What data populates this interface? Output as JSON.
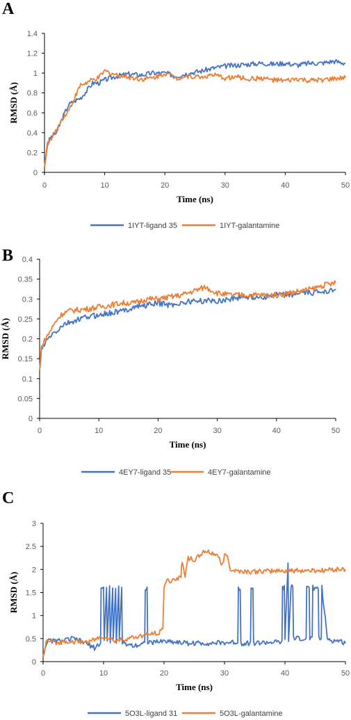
{
  "chart_data": [
    {
      "type": "line",
      "panel_label": "A",
      "xlabel": "Time (ns)",
      "ylabel": "RMSD (Å)",
      "xlim": [
        0,
        50
      ],
      "ylim": [
        0,
        1.4
      ],
      "xticks": [
        "0",
        "10",
        "20",
        "30",
        "40",
        "50"
      ],
      "yticks": [
        "0",
        "0.2",
        "0.4",
        "0.6",
        "0.8",
        "1",
        "1.2",
        "1.4"
      ],
      "ytick_values": [
        0,
        0.2,
        0.4,
        0.6,
        0.8,
        1,
        1.2,
        1.4
      ],
      "xtick_values": [
        0,
        10,
        20,
        30,
        40,
        50
      ],
      "legend_position": "bottom",
      "series": [
        {
          "name": "1IYT-ligand 35",
          "color": "#4472C4",
          "x": [
            0,
            0.5,
            1,
            2,
            3,
            4,
            5,
            6,
            7,
            8,
            9,
            10,
            12,
            14,
            16,
            18,
            20,
            22,
            24,
            26,
            28,
            30,
            32,
            34,
            36,
            38,
            40,
            42,
            44,
            46,
            48,
            50
          ],
          "y": [
            0.05,
            0.28,
            0.35,
            0.4,
            0.55,
            0.68,
            0.72,
            0.75,
            0.82,
            0.9,
            0.9,
            0.93,
            0.97,
            0.99,
            0.98,
            1.0,
            1.0,
            0.97,
            1.0,
            1.02,
            1.05,
            1.07,
            1.08,
            1.09,
            1.1,
            1.09,
            1.1,
            1.08,
            1.1,
            1.1,
            1.12,
            1.1
          ]
        },
        {
          "name": "1IYT-galantamine",
          "color": "#ED7D31",
          "x": [
            0,
            0.5,
            1,
            2,
            3,
            4,
            5,
            6,
            7,
            8,
            9,
            10,
            12,
            14,
            16,
            18,
            20,
            22,
            24,
            26,
            28,
            30,
            32,
            34,
            36,
            38,
            40,
            42,
            44,
            46,
            48,
            50
          ],
          "y": [
            0.05,
            0.3,
            0.32,
            0.42,
            0.55,
            0.62,
            0.75,
            0.88,
            0.9,
            0.93,
            0.95,
            1.02,
            0.98,
            0.96,
            0.94,
            0.95,
            1.0,
            0.95,
            0.97,
            0.96,
            0.98,
            0.95,
            0.96,
            0.94,
            0.95,
            0.93,
            0.92,
            0.94,
            0.92,
            0.93,
            0.94,
            0.95
          ]
        }
      ]
    },
    {
      "type": "line",
      "panel_label": "B",
      "xlabel": "Time (ns)",
      "ylabel": "RMSD (Å)",
      "xlim": [
        0,
        50
      ],
      "ylim": [
        0,
        0.4
      ],
      "xticks": [
        "0",
        "10",
        "20",
        "30",
        "40",
        "50"
      ],
      "yticks": [
        "0",
        "0.05",
        "0.1",
        "0.15",
        "0.2",
        "0.25",
        "0.3",
        "0.35",
        "0.4"
      ],
      "ytick_values": [
        0,
        0.05,
        0.1,
        0.15,
        0.2,
        0.25,
        0.3,
        0.35,
        0.4
      ],
      "xtick_values": [
        0,
        10,
        20,
        30,
        40,
        50
      ],
      "legend_position": "bottom",
      "series": [
        {
          "name": "4EY7-ligand 35",
          "color": "#4472C4",
          "x": [
            0,
            0.3,
            1,
            2,
            3,
            4,
            5,
            6,
            8,
            10,
            12,
            14,
            16,
            18,
            20,
            22,
            24,
            26,
            28,
            30,
            32,
            34,
            36,
            38,
            40,
            42,
            44,
            46,
            48,
            50
          ],
          "y": [
            0.12,
            0.17,
            0.19,
            0.21,
            0.22,
            0.235,
            0.24,
            0.245,
            0.255,
            0.26,
            0.265,
            0.27,
            0.28,
            0.285,
            0.29,
            0.285,
            0.29,
            0.295,
            0.295,
            0.295,
            0.3,
            0.305,
            0.305,
            0.305,
            0.31,
            0.31,
            0.315,
            0.315,
            0.32,
            0.325
          ]
        },
        {
          "name": "4EY7-galantamine",
          "color": "#ED7D31",
          "x": [
            0,
            0.3,
            1,
            2,
            3,
            4,
            5,
            6,
            8,
            10,
            12,
            14,
            16,
            18,
            20,
            22,
            24,
            26,
            28,
            30,
            32,
            34,
            36,
            38,
            40,
            42,
            44,
            46,
            48,
            50
          ],
          "y": [
            0.12,
            0.18,
            0.2,
            0.225,
            0.25,
            0.265,
            0.27,
            0.272,
            0.275,
            0.28,
            0.285,
            0.29,
            0.29,
            0.3,
            0.3,
            0.305,
            0.31,
            0.32,
            0.33,
            0.315,
            0.31,
            0.31,
            0.31,
            0.31,
            0.31,
            0.315,
            0.32,
            0.325,
            0.335,
            0.34
          ]
        }
      ]
    },
    {
      "type": "line",
      "panel_label": "C",
      "xlabel": "Time (ns)",
      "ylabel": "RMSD (Å)",
      "xlim": [
        0,
        50
      ],
      "ylim": [
        0,
        3
      ],
      "xticks": [
        "0",
        "10",
        "20",
        "30",
        "40",
        "50"
      ],
      "yticks": [
        "0",
        "0.5",
        "1",
        "1.5",
        "2",
        "2.5",
        "3"
      ],
      "ytick_values": [
        0,
        0.5,
        1,
        1.5,
        2,
        2.5,
        3
      ],
      "xtick_values": [
        0,
        10,
        20,
        30,
        40,
        50
      ],
      "legend_position": "bottom",
      "series": [
        {
          "name": "5O3L-ligand 31",
          "color": "#4472C4",
          "x": [
            0,
            0.5,
            1,
            3,
            5,
            7,
            8.5,
            9.5,
            9.6,
            10,
            10.1,
            10.5,
            10.6,
            11,
            11.1,
            11.5,
            11.6,
            12,
            12.1,
            12.5,
            12.6,
            13,
            13.1,
            15,
            16.8,
            16.9,
            17.2,
            17.3,
            20,
            24,
            28,
            32.2,
            32.3,
            32.6,
            32.7,
            34.3,
            34.4,
            34.7,
            34.8,
            38,
            39.5,
            39.6,
            39.9,
            40,
            40.5,
            40.6,
            41,
            41.1,
            41.3,
            41.4,
            41.8,
            42,
            43,
            43.5,
            43.6,
            44,
            44.1,
            44.5,
            44.6,
            45.5,
            45.6,
            46,
            46.1,
            47,
            48,
            49,
            50
          ],
          "y": [
            0.1,
            0.4,
            0.45,
            0.45,
            0.5,
            0.4,
            0.3,
            0.4,
            1.6,
            1.6,
            0.45,
            1.6,
            0.45,
            1.6,
            0.45,
            1.6,
            0.45,
            1.6,
            0.45,
            1.6,
            0.45,
            1.6,
            0.4,
            0.35,
            0.4,
            1.6,
            1.6,
            0.4,
            0.45,
            0.4,
            0.4,
            0.42,
            1.6,
            1.6,
            0.4,
            0.4,
            1.6,
            1.6,
            0.4,
            0.42,
            0.42,
            1.6,
            1.6,
            0.45,
            2.15,
            0.45,
            1.6,
            1.65,
            1.65,
            0.5,
            0.5,
            0.5,
            0.5,
            0.5,
            1.6,
            1.6,
            0.5,
            0.5,
            1.6,
            1.6,
            0.5,
            0.5,
            1.6,
            0.5,
            0.45,
            0.45,
            0.4
          ]
        },
        {
          "name": "5O3L-galantamine",
          "color": "#ED7D31",
          "x": [
            0,
            0.5,
            1,
            2,
            4,
            6,
            8,
            10,
            12,
            14,
            16,
            18,
            19.5,
            19.8,
            20,
            20.2,
            20.5,
            21,
            22,
            22.8,
            23,
            23.5,
            24,
            25,
            26,
            26.5,
            28,
            29,
            29.5,
            30,
            30.5,
            31,
            32,
            34,
            36,
            38,
            40,
            42,
            44,
            46,
            48,
            50
          ],
          "y": [
            0.1,
            0.42,
            0.45,
            0.4,
            0.45,
            0.42,
            0.45,
            0.55,
            0.45,
            0.5,
            0.55,
            0.6,
            0.65,
            0.75,
            1.6,
            1.7,
            1.75,
            1.75,
            1.8,
            1.85,
            2.2,
            1.85,
            2.25,
            2.2,
            2.3,
            2.4,
            2.35,
            2.3,
            2.05,
            2.3,
            2.3,
            2.0,
            1.97,
            1.95,
            1.95,
            1.97,
            1.97,
            1.97,
            1.98,
            1.98,
            2.0,
            2.0
          ]
        }
      ]
    }
  ]
}
